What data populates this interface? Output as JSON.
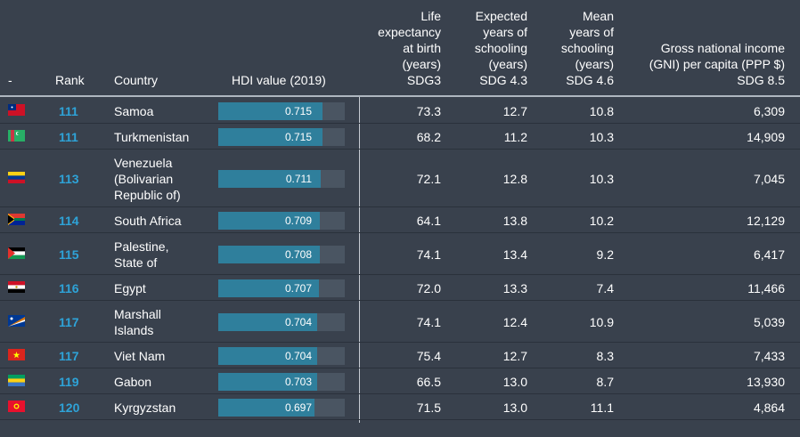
{
  "header": {
    "flag_col": "-",
    "rank": "Rank",
    "country": "Country",
    "hdi": "HDI value (2019)",
    "life": [
      "Life",
      "expectancy",
      "at birth",
      "(years)",
      "SDG3"
    ],
    "expected": [
      "Expected",
      "years of",
      "schooling",
      "(years)",
      "SDG 4.3"
    ],
    "mean": [
      "Mean",
      "years of",
      "schooling",
      "(years)",
      "SDG 4.6"
    ],
    "gni": [
      "Gross national income",
      "(GNI) per capita (PPP $)",
      "SDG 8.5"
    ]
  },
  "rows": [
    {
      "flag": "samoa-flag",
      "rank": "111",
      "country": [
        "Samoa"
      ],
      "hdi": "0.715",
      "hdi_value": 0.715,
      "life": "73.3",
      "expected": "12.7",
      "mean": "10.8",
      "gni": "6,309"
    },
    {
      "flag": "turkmenistan-flag",
      "rank": "111",
      "country": [
        "Turkmenistan"
      ],
      "hdi": "0.715",
      "hdi_value": 0.715,
      "life": "68.2",
      "expected": "11.2",
      "mean": "10.3",
      "gni": "14,909"
    },
    {
      "flag": "venezuela-flag",
      "rank": "113",
      "country": [
        "Venezuela",
        "(Bolivarian",
        "Republic of)"
      ],
      "hdi": "0.711",
      "hdi_value": 0.711,
      "life": "72.1",
      "expected": "12.8",
      "mean": "10.3",
      "gni": "7,045"
    },
    {
      "flag": "south-africa-flag",
      "rank": "114",
      "country": [
        "South Africa"
      ],
      "hdi": "0.709",
      "hdi_value": 0.709,
      "life": "64.1",
      "expected": "13.8",
      "mean": "10.2",
      "gni": "12,129"
    },
    {
      "flag": "palestine-flag",
      "rank": "115",
      "country": [
        "Palestine,",
        "State of"
      ],
      "hdi": "0.708",
      "hdi_value": 0.708,
      "life": "74.1",
      "expected": "13.4",
      "mean": "9.2",
      "gni": "6,417"
    },
    {
      "flag": "egypt-flag",
      "rank": "116",
      "country": [
        "Egypt"
      ],
      "hdi": "0.707",
      "hdi_value": 0.707,
      "life": "72.0",
      "expected": "13.3",
      "mean": "7.4",
      "gni": "11,466"
    },
    {
      "flag": "marshall-islands-flag",
      "rank": "117",
      "country": [
        "Marshall",
        "Islands"
      ],
      "hdi": "0.704",
      "hdi_value": 0.704,
      "life": "74.1",
      "expected": "12.4",
      "mean": "10.9",
      "gni": "5,039"
    },
    {
      "flag": "viet-nam-flag",
      "rank": "117",
      "country": [
        "Viet Nam"
      ],
      "hdi": "0.704",
      "hdi_value": 0.704,
      "life": "75.4",
      "expected": "12.7",
      "mean": "8.3",
      "gni": "7,433"
    },
    {
      "flag": "gabon-flag",
      "rank": "119",
      "country": [
        "Gabon"
      ],
      "hdi": "0.703",
      "hdi_value": 0.703,
      "life": "66.5",
      "expected": "13.0",
      "mean": "8.7",
      "gni": "13,930"
    },
    {
      "flag": "kyrgyzstan-flag",
      "rank": "120",
      "country": [
        "Kyrgyzstan"
      ],
      "hdi": "0.697",
      "hdi_value": 0.697,
      "life": "71.5",
      "expected": "13.0",
      "mean": "11.1",
      "gni": "4,864"
    }
  ],
  "colors": {
    "background": "#39414d",
    "rank": "#2ea3d8",
    "bar_fill": "#2f7f9c",
    "bar_track": "#4a5562"
  }
}
